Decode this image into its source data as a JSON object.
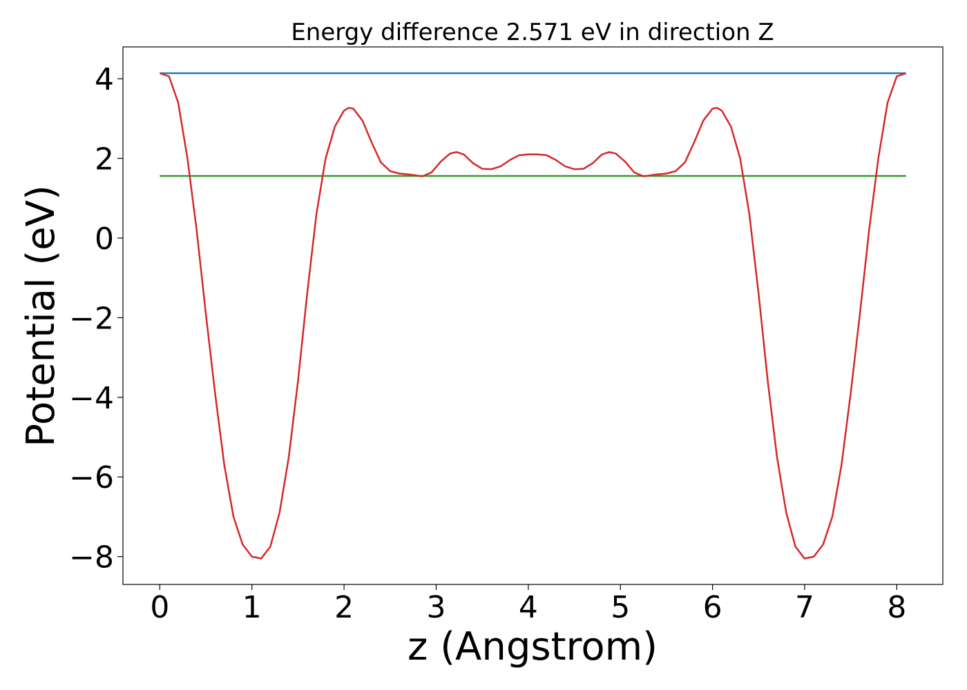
{
  "chart_data": {
    "type": "line",
    "title": "Energy difference 2.571 eV in direction Z",
    "xlabel": "z (Angstrom)",
    "ylabel": "Potential (eV)",
    "xlim": [
      -0.4,
      8.5
    ],
    "ylim": [
      -8.7,
      4.8
    ],
    "xticks": [
      0,
      1,
      2,
      3,
      4,
      5,
      6,
      7,
      8
    ],
    "xtick_labels": [
      "0",
      "1",
      "2",
      "3",
      "4",
      "5",
      "6",
      "7",
      "8"
    ],
    "yticks": [
      4,
      2,
      0,
      -2,
      -4,
      -6,
      -8
    ],
    "ytick_labels": [
      "4",
      "2",
      "0",
      "−2",
      "−4",
      "−6",
      "−8"
    ],
    "grid": false,
    "legend": "none",
    "series": [
      {
        "color": "#d62728",
        "points": [
          [
            0.0,
            4.14
          ],
          [
            0.1,
            4.06
          ],
          [
            0.2,
            3.4
          ],
          [
            0.3,
            2.0
          ],
          [
            0.4,
            0.2
          ],
          [
            0.5,
            -1.9
          ],
          [
            0.6,
            -3.9
          ],
          [
            0.7,
            -5.7
          ],
          [
            0.8,
            -7.0
          ],
          [
            0.9,
            -7.7
          ],
          [
            1.0,
            -8.0
          ],
          [
            1.1,
            -8.05
          ],
          [
            1.2,
            -7.75
          ],
          [
            1.3,
            -6.9
          ],
          [
            1.4,
            -5.5
          ],
          [
            1.5,
            -3.6
          ],
          [
            1.6,
            -1.4
          ],
          [
            1.7,
            0.6
          ],
          [
            1.8,
            2.0
          ],
          [
            1.9,
            2.8
          ],
          [
            2.0,
            3.2
          ],
          [
            2.05,
            3.27
          ],
          [
            2.1,
            3.25
          ],
          [
            2.2,
            2.95
          ],
          [
            2.3,
            2.4
          ],
          [
            2.4,
            1.9
          ],
          [
            2.5,
            1.68
          ],
          [
            2.6,
            1.62
          ],
          [
            2.7,
            1.6
          ],
          [
            2.85,
            1.55
          ],
          [
            2.95,
            1.65
          ],
          [
            3.05,
            1.92
          ],
          [
            3.15,
            2.12
          ],
          [
            3.22,
            2.16
          ],
          [
            3.3,
            2.1
          ],
          [
            3.4,
            1.88
          ],
          [
            3.5,
            1.74
          ],
          [
            3.6,
            1.73
          ],
          [
            3.7,
            1.8
          ],
          [
            3.8,
            1.96
          ],
          [
            3.9,
            2.08
          ],
          [
            4.0,
            2.1
          ],
          [
            4.1,
            2.1
          ],
          [
            4.2,
            2.08
          ],
          [
            4.3,
            1.96
          ],
          [
            4.4,
            1.8
          ],
          [
            4.5,
            1.73
          ],
          [
            4.6,
            1.74
          ],
          [
            4.7,
            1.88
          ],
          [
            4.8,
            2.1
          ],
          [
            4.88,
            2.16
          ],
          [
            4.95,
            2.12
          ],
          [
            5.05,
            1.92
          ],
          [
            5.15,
            1.65
          ],
          [
            5.25,
            1.55
          ],
          [
            5.4,
            1.6
          ],
          [
            5.5,
            1.62
          ],
          [
            5.6,
            1.68
          ],
          [
            5.7,
            1.9
          ],
          [
            5.8,
            2.4
          ],
          [
            5.9,
            2.95
          ],
          [
            6.0,
            3.25
          ],
          [
            6.05,
            3.27
          ],
          [
            6.1,
            3.2
          ],
          [
            6.2,
            2.8
          ],
          [
            6.3,
            2.0
          ],
          [
            6.4,
            0.6
          ],
          [
            6.5,
            -1.4
          ],
          [
            6.6,
            -3.6
          ],
          [
            6.7,
            -5.5
          ],
          [
            6.8,
            -6.9
          ],
          [
            6.9,
            -7.75
          ],
          [
            7.0,
            -8.05
          ],
          [
            7.1,
            -8.0
          ],
          [
            7.2,
            -7.7
          ],
          [
            7.3,
            -7.0
          ],
          [
            7.4,
            -5.7
          ],
          [
            7.5,
            -3.9
          ],
          [
            7.6,
            -1.9
          ],
          [
            7.7,
            0.2
          ],
          [
            7.8,
            2.0
          ],
          [
            7.9,
            3.4
          ],
          [
            8.0,
            4.06
          ],
          [
            8.1,
            4.14
          ]
        ]
      },
      {
        "color": "#1f77b4",
        "points": [
          [
            0.0,
            4.14
          ],
          [
            8.1,
            4.14
          ]
        ]
      },
      {
        "color": "#2ca02c",
        "points": [
          [
            0.0,
            1.56
          ],
          [
            8.1,
            1.56
          ]
        ]
      }
    ]
  }
}
